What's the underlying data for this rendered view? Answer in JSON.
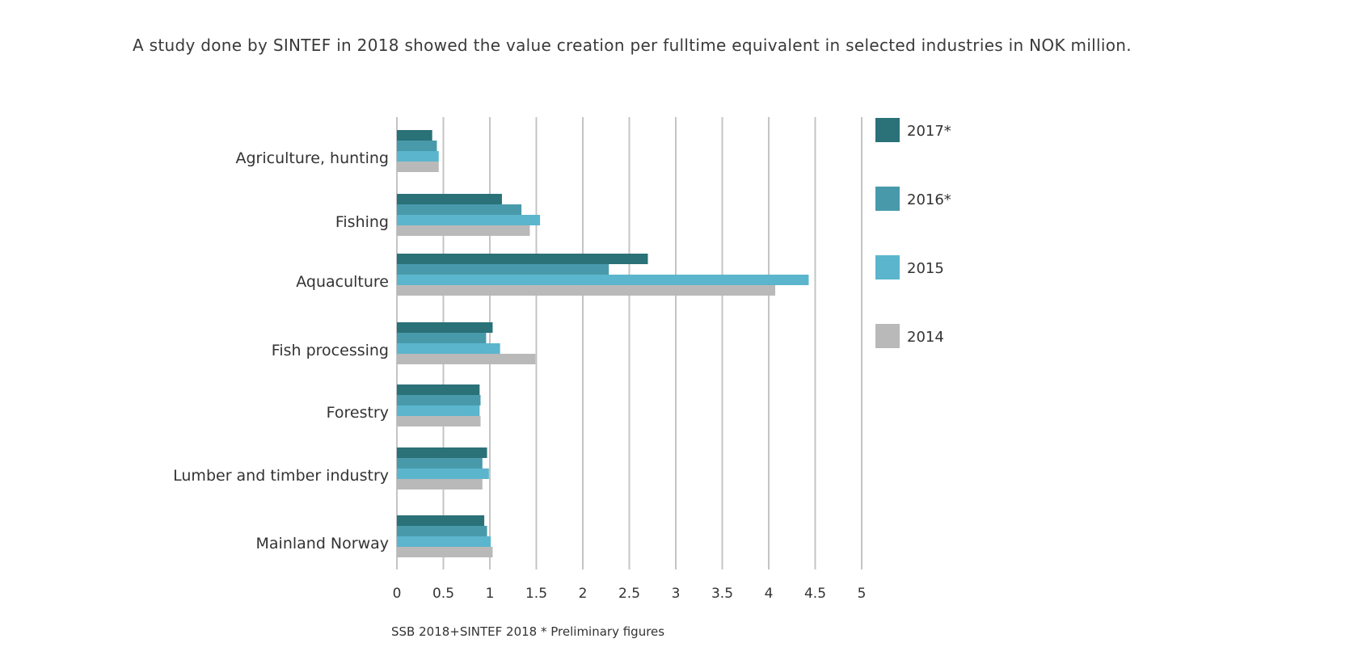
{
  "intro_text": "A study done by SINTEF in 2018 showed the value creation per fulltime equivalent in selected industries in NOK million.",
  "chart_data": {
    "type": "bar",
    "orientation": "horizontal",
    "categories": [
      "Agriculture, hunting",
      "Fishing",
      "Aquaculture",
      "Fish processing",
      "Forestry",
      "Lumber and timber industry",
      "Mainland Norway"
    ],
    "series": [
      {
        "name": "2017*",
        "color": "#2a7178",
        "values": [
          0.38,
          1.13,
          2.7,
          1.03,
          0.89,
          0.97,
          0.94
        ]
      },
      {
        "name": "2016*",
        "color": "#489aab",
        "values": [
          0.43,
          1.34,
          2.28,
          0.96,
          0.9,
          0.92,
          0.97
        ]
      },
      {
        "name": "2015",
        "color": "#5bb5cd",
        "values": [
          0.45,
          1.54,
          4.43,
          1.11,
          0.89,
          0.99,
          1.01
        ]
      },
      {
        "name": "2014",
        "color": "#b9b9b9",
        "values": [
          0.45,
          1.43,
          4.07,
          1.49,
          0.9,
          0.92,
          1.03
        ]
      }
    ],
    "xticks": [
      "0",
      "0.5",
      "1",
      "1.5",
      "2",
      "2.5",
      "3",
      "3.5",
      "4",
      "4.5",
      "5"
    ],
    "xlim": [
      0,
      5
    ],
    "grid": true,
    "legend_position": "right",
    "source": "SSB 2018+SINTEF 2018 * Preliminary figures"
  }
}
